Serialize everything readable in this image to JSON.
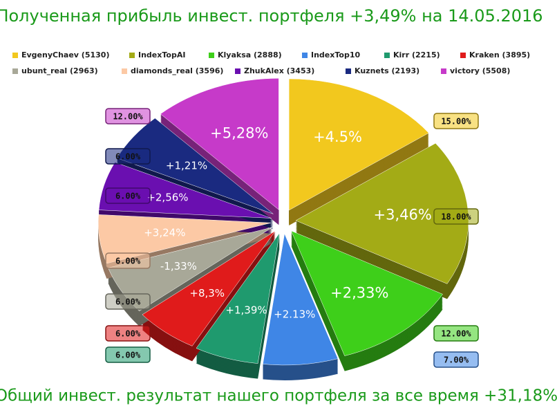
{
  "chart_data": {
    "type": "pie",
    "title": "Полученная прибыль инвест. портфеля +3,49% на 14.05.2016",
    "caption": "Общий инвест. результат нашего портфеля за все время +31,18%",
    "categories": [
      "EvgenyChaev (5130)",
      "IndexTopAI",
      "Klyaksa (2888)",
      "IndexTop10",
      "Kirr (2215)",
      "Kraken (3895)",
      "ubunt_real (2963)",
      "diamonds_real (3596)",
      "ZhukAlex (3453)",
      "Kuznets (2193)",
      "victory (5508)"
    ],
    "values": [
      15,
      18,
      12,
      7,
      6,
      6,
      6,
      6,
      6,
      6,
      12
    ],
    "value_labels": [
      "15.00%",
      "18.00%",
      "12.00%",
      "7.00%",
      "6.00%",
      "6.00%",
      "6.00%",
      "6.00%",
      "6.00%",
      "6.00%",
      "12.00%"
    ],
    "slice_labels": [
      "+4.5%",
      "+3,46%",
      "+2,33%",
      "+2.13%",
      "+1,39%",
      "+8,3%",
      "-1,33%",
      "+3,24%",
      "+2,56%",
      "+1,21%",
      "+5,28%"
    ],
    "colors": [
      "#f2c81e",
      "#a3ab16",
      "#3ecf1a",
      "#3f86e6",
      "#1f9a6e",
      "#e01b1b",
      "#a8a898",
      "#fcc9a5",
      "#6a0fb0",
      "#1a2a80",
      "#c63ac9"
    ]
  }
}
